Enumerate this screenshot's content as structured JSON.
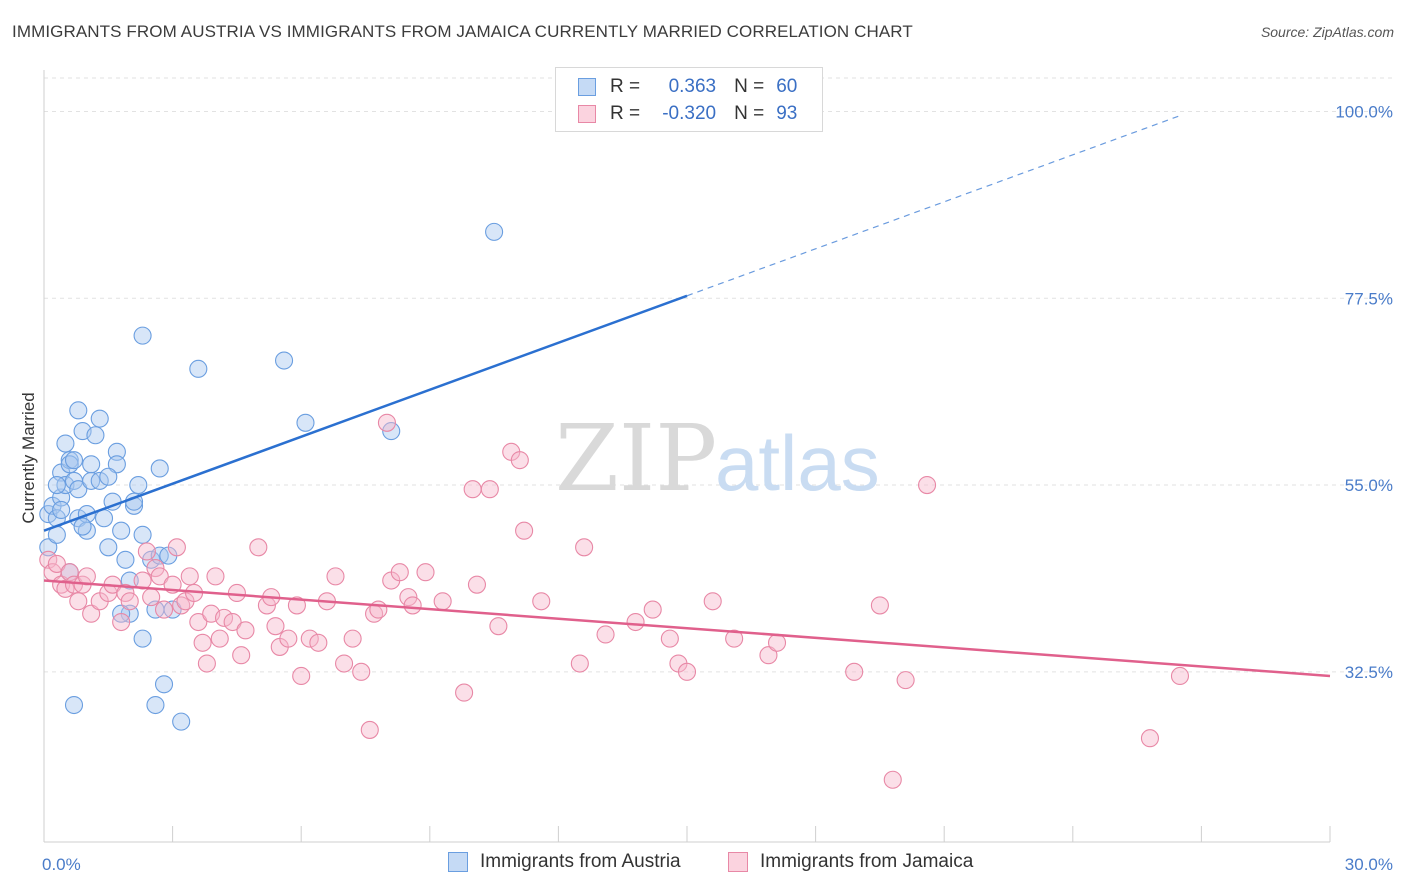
{
  "header": {
    "title": "IMMIGRANTS FROM AUSTRIA VS IMMIGRANTS FROM JAMAICA CURRENTLY MARRIED CORRELATION CHART",
    "source": "Source: ZipAtlas.com"
  },
  "watermark": {
    "zip": "ZIP",
    "atlas": "atlas"
  },
  "legend": {
    "rows": [
      {
        "r_label": "R =",
        "r_value": "0.363",
        "n_label": "N =",
        "n_value": "60",
        "color": "#a9c8f0"
      },
      {
        "r_label": "R =",
        "r_value": "-0.320",
        "n_label": "N =",
        "n_value": "93",
        "color": "#f7b9cb"
      }
    ]
  },
  "chart_data": {
    "type": "scatter",
    "title": "IMMIGRANTS FROM AUSTRIA VS IMMIGRANTS FROM JAMAICA CURRENTLY MARRIED CORRELATION CHART",
    "xlabel": "",
    "ylabel": "Currently Married",
    "xlim": [
      0,
      30
    ],
    "ylim": [
      12,
      105
    ],
    "x_tick_labels": [
      "0.0%",
      "30.0%"
    ],
    "y_ticks": [
      32.5,
      55.0,
      77.5,
      100.0
    ],
    "y_tick_labels": [
      "32.5%",
      "55.0%",
      "77.5%",
      "100.0%"
    ],
    "grid": true,
    "legend_position": "bottom",
    "series": [
      {
        "name": "Immigrants from Austria",
        "color": "#a9c8f0",
        "stroke": "#6a9ee0",
        "trend_color": "#2b70d0",
        "trend": {
          "x0": 0.0,
          "y0": 49.5,
          "x1": 15.0,
          "y1": 77.8,
          "x_dashed_end": 26.5
        },
        "points": [
          [
            0.1,
            47.5
          ],
          [
            0.1,
            51.5
          ],
          [
            0.2,
            52.5
          ],
          [
            0.3,
            51.0
          ],
          [
            0.3,
            49.0
          ],
          [
            0.4,
            53.5
          ],
          [
            0.4,
            52.0
          ],
          [
            0.4,
            56.5
          ],
          [
            0.5,
            55.0
          ],
          [
            0.5,
            60.0
          ],
          [
            0.6,
            58.0
          ],
          [
            0.6,
            57.5
          ],
          [
            0.7,
            58.0
          ],
          [
            0.7,
            55.5
          ],
          [
            0.8,
            51.0
          ],
          [
            0.8,
            54.5
          ],
          [
            0.8,
            64.0
          ],
          [
            0.9,
            61.5
          ],
          [
            1.0,
            51.5
          ],
          [
            1.0,
            49.5
          ],
          [
            1.1,
            57.5
          ],
          [
            1.1,
            55.5
          ],
          [
            1.2,
            61.0
          ],
          [
            1.3,
            55.5
          ],
          [
            1.3,
            63.0
          ],
          [
            1.4,
            51.0
          ],
          [
            1.5,
            47.5
          ],
          [
            1.6,
            53.0
          ],
          [
            1.7,
            59.0
          ],
          [
            1.7,
            57.5
          ],
          [
            1.8,
            49.5
          ],
          [
            1.9,
            46.0
          ],
          [
            2.0,
            43.5
          ],
          [
            2.0,
            39.5
          ],
          [
            2.1,
            52.5
          ],
          [
            2.2,
            55.0
          ],
          [
            2.3,
            73.0
          ],
          [
            2.3,
            49.0
          ],
          [
            2.3,
            36.5
          ],
          [
            2.5,
            46.0
          ],
          [
            2.6,
            40.0
          ],
          [
            2.6,
            28.5
          ],
          [
            2.7,
            46.5
          ],
          [
            2.8,
            31.0
          ],
          [
            2.9,
            46.5
          ],
          [
            3.0,
            40.0
          ],
          [
            3.6,
            69.0
          ],
          [
            5.6,
            70.0
          ],
          [
            6.1,
            62.5
          ],
          [
            8.1,
            61.5
          ],
          [
            10.5,
            85.5
          ],
          [
            0.7,
            28.5
          ],
          [
            1.8,
            39.5
          ],
          [
            2.1,
            53.0
          ],
          [
            3.2,
            26.5
          ],
          [
            0.9,
            50.0
          ],
          [
            0.3,
            55.0
          ],
          [
            1.5,
            56.0
          ],
          [
            2.7,
            57.0
          ],
          [
            0.6,
            44.5
          ]
        ]
      },
      {
        "name": "Immigrants from Jamaica",
        "color": "#f7b9cb",
        "stroke": "#e888a6",
        "trend_color": "#e0608c",
        "trend": {
          "x0": 0.0,
          "y0": 43.5,
          "x1": 30.0,
          "y1": 32.0
        },
        "points": [
          [
            0.1,
            46.0
          ],
          [
            0.2,
            44.5
          ],
          [
            0.3,
            45.5
          ],
          [
            0.4,
            43.0
          ],
          [
            0.5,
            42.5
          ],
          [
            0.6,
            44.5
          ],
          [
            0.7,
            43.0
          ],
          [
            0.8,
            41.0
          ],
          [
            0.9,
            43.0
          ],
          [
            1.0,
            44.0
          ],
          [
            1.1,
            39.5
          ],
          [
            1.3,
            41.0
          ],
          [
            1.5,
            42.0
          ],
          [
            1.6,
            43.0
          ],
          [
            1.8,
            38.5
          ],
          [
            1.9,
            42.0
          ],
          [
            2.0,
            41.0
          ],
          [
            2.3,
            43.5
          ],
          [
            2.4,
            47.0
          ],
          [
            2.5,
            41.5
          ],
          [
            2.6,
            45.0
          ],
          [
            2.7,
            44.0
          ],
          [
            2.8,
            40.0
          ],
          [
            3.0,
            43.0
          ],
          [
            3.1,
            47.5
          ],
          [
            3.2,
            40.5
          ],
          [
            3.3,
            41.0
          ],
          [
            3.4,
            44.0
          ],
          [
            3.5,
            42.0
          ],
          [
            3.6,
            38.5
          ],
          [
            3.7,
            36.0
          ],
          [
            3.8,
            33.5
          ],
          [
            3.9,
            39.5
          ],
          [
            4.0,
            44.0
          ],
          [
            4.1,
            36.5
          ],
          [
            4.2,
            39.0
          ],
          [
            4.4,
            38.5
          ],
          [
            4.5,
            42.0
          ],
          [
            4.6,
            34.5
          ],
          [
            4.7,
            37.5
          ],
          [
            5.0,
            47.5
          ],
          [
            5.2,
            40.5
          ],
          [
            5.3,
            41.5
          ],
          [
            5.4,
            38.0
          ],
          [
            5.5,
            35.5
          ],
          [
            5.7,
            36.5
          ],
          [
            5.9,
            40.5
          ],
          [
            6.0,
            32.0
          ],
          [
            6.2,
            36.5
          ],
          [
            6.4,
            36.0
          ],
          [
            6.6,
            41.0
          ],
          [
            6.8,
            44.0
          ],
          [
            7.0,
            33.5
          ],
          [
            7.2,
            36.5
          ],
          [
            7.4,
            32.5
          ],
          [
            7.6,
            25.5
          ],
          [
            7.7,
            39.5
          ],
          [
            7.8,
            40.0
          ],
          [
            8.0,
            62.5
          ],
          [
            8.1,
            43.5
          ],
          [
            8.3,
            44.5
          ],
          [
            8.5,
            41.5
          ],
          [
            8.6,
            40.5
          ],
          [
            8.9,
            44.5
          ],
          [
            9.3,
            41.0
          ],
          [
            9.8,
            30.0
          ],
          [
            10.0,
            54.5
          ],
          [
            10.1,
            43.0
          ],
          [
            10.4,
            54.5
          ],
          [
            10.6,
            38.0
          ],
          [
            10.9,
            59.0
          ],
          [
            11.1,
            58.0
          ],
          [
            11.2,
            49.5
          ],
          [
            11.6,
            41.0
          ],
          [
            12.5,
            33.5
          ],
          [
            12.6,
            47.5
          ],
          [
            13.1,
            37.0
          ],
          [
            13.8,
            38.5
          ],
          [
            14.2,
            40.0
          ],
          [
            14.6,
            36.5
          ],
          [
            14.8,
            33.5
          ],
          [
            15.0,
            32.5
          ],
          [
            15.6,
            41.0
          ],
          [
            16.1,
            36.5
          ],
          [
            16.9,
            34.5
          ],
          [
            17.1,
            36.0
          ],
          [
            18.9,
            32.5
          ],
          [
            19.5,
            40.5
          ],
          [
            19.8,
            19.5
          ],
          [
            20.1,
            31.5
          ],
          [
            20.6,
            55.0
          ],
          [
            26.5,
            32.0
          ],
          [
            25.8,
            24.5
          ]
        ]
      }
    ]
  },
  "bottom_legend": [
    {
      "label": "Immigrants from Austria",
      "color": "#a9c8f0",
      "stroke": "#6a9ee0"
    },
    {
      "label": "Immigrants from Jamaica",
      "color": "#f7b9cb",
      "stroke": "#e888a6"
    }
  ]
}
